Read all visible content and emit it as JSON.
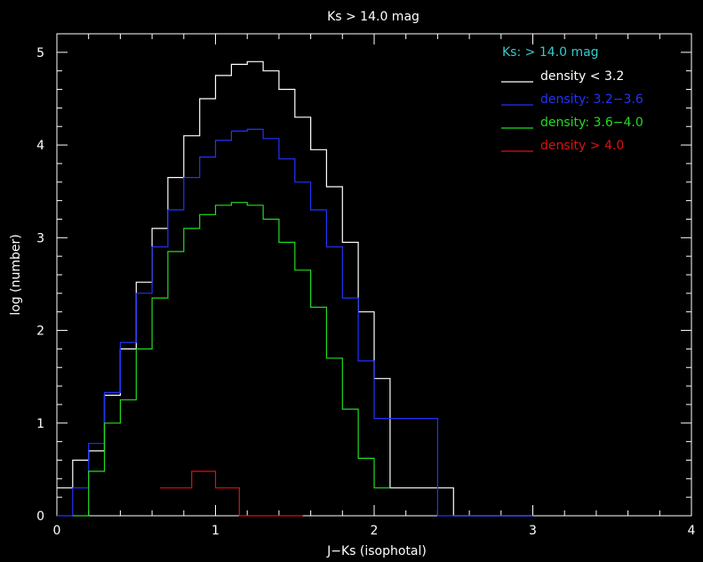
{
  "chart_data": {
    "type": "line",
    "title": "Ks > 14.0 mag",
    "xlabel": "J−Ks (isophotal)",
    "ylabel": "log (number)",
    "xlim": [
      0,
      4
    ],
    "ylim": [
      0,
      5.2
    ],
    "x_ticks": [
      "0",
      "1",
      "2",
      "3",
      "4"
    ],
    "y_ticks": [
      "0",
      "1",
      "2",
      "3",
      "4",
      "5"
    ],
    "legend_title": "Ks: > 14.0 mag",
    "legend_title_color": "#33cccc",
    "legend_position": "top-right",
    "grid": false,
    "series": [
      {
        "name": "density < 3.2",
        "color": "#ffffff",
        "bin_edges": [
          0.0,
          0.1,
          0.2,
          0.3,
          0.4,
          0.5,
          0.6,
          0.7,
          0.8,
          0.9,
          1.0,
          1.1,
          1.2,
          1.3,
          1.4,
          1.5,
          1.6,
          1.7,
          1.8,
          1.9,
          2.0,
          2.1,
          2.2,
          2.3,
          2.4,
          2.5,
          2.6,
          2.7,
          2.8,
          2.9,
          3.0
        ],
        "values": [
          0.3,
          0.6,
          0.7,
          1.3,
          1.8,
          2.52,
          3.1,
          3.65,
          4.1,
          4.5,
          4.75,
          4.87,
          4.9,
          4.8,
          4.6,
          4.3,
          3.95,
          3.55,
          2.95,
          2.2,
          1.48,
          0.3,
          0.3,
          0.3,
          0.3,
          0.0,
          0.0,
          0.0,
          0.0,
          0.0
        ]
      },
      {
        "name": "density: 3.2−3.6",
        "color": "#2233ff",
        "bin_edges": [
          0.0,
          0.1,
          0.2,
          0.3,
          0.4,
          0.5,
          0.6,
          0.7,
          0.8,
          0.9,
          1.0,
          1.1,
          1.2,
          1.3,
          1.4,
          1.5,
          1.6,
          1.7,
          1.8,
          1.9,
          2.0,
          2.1,
          2.2,
          2.3,
          2.4,
          2.5,
          2.6,
          2.7,
          2.8,
          2.9,
          3.0
        ],
        "values": [
          0.0,
          0.3,
          0.78,
          1.33,
          1.87,
          2.4,
          2.9,
          3.3,
          3.65,
          3.87,
          4.05,
          4.15,
          4.17,
          4.07,
          3.85,
          3.6,
          3.3,
          2.9,
          2.35,
          1.67,
          1.05,
          1.05,
          1.05,
          1.05,
          0.0,
          0.0,
          0.0,
          0.0,
          0.0,
          0.0
        ]
      },
      {
        "name": "density: 3.6−4.0",
        "color": "#22dd22",
        "bin_edges": [
          0.1,
          0.2,
          0.3,
          0.4,
          0.5,
          0.6,
          0.7,
          0.8,
          0.9,
          1.0,
          1.1,
          1.2,
          1.3,
          1.4,
          1.5,
          1.6,
          1.7,
          1.8,
          1.9,
          2.0,
          2.1
        ],
        "values": [
          0.0,
          0.48,
          1.0,
          1.25,
          1.8,
          2.35,
          2.85,
          3.1,
          3.25,
          3.35,
          3.38,
          3.35,
          3.2,
          2.95,
          2.65,
          2.25,
          1.7,
          1.15,
          0.62,
          0.3
        ]
      },
      {
        "name": "density > 4.0",
        "color": "#dd1111",
        "bin_edges": [
          0.65,
          0.85,
          1.0,
          1.15,
          1.55
        ],
        "values": [
          0.3,
          0.48,
          0.3,
          0.0
        ]
      }
    ]
  }
}
